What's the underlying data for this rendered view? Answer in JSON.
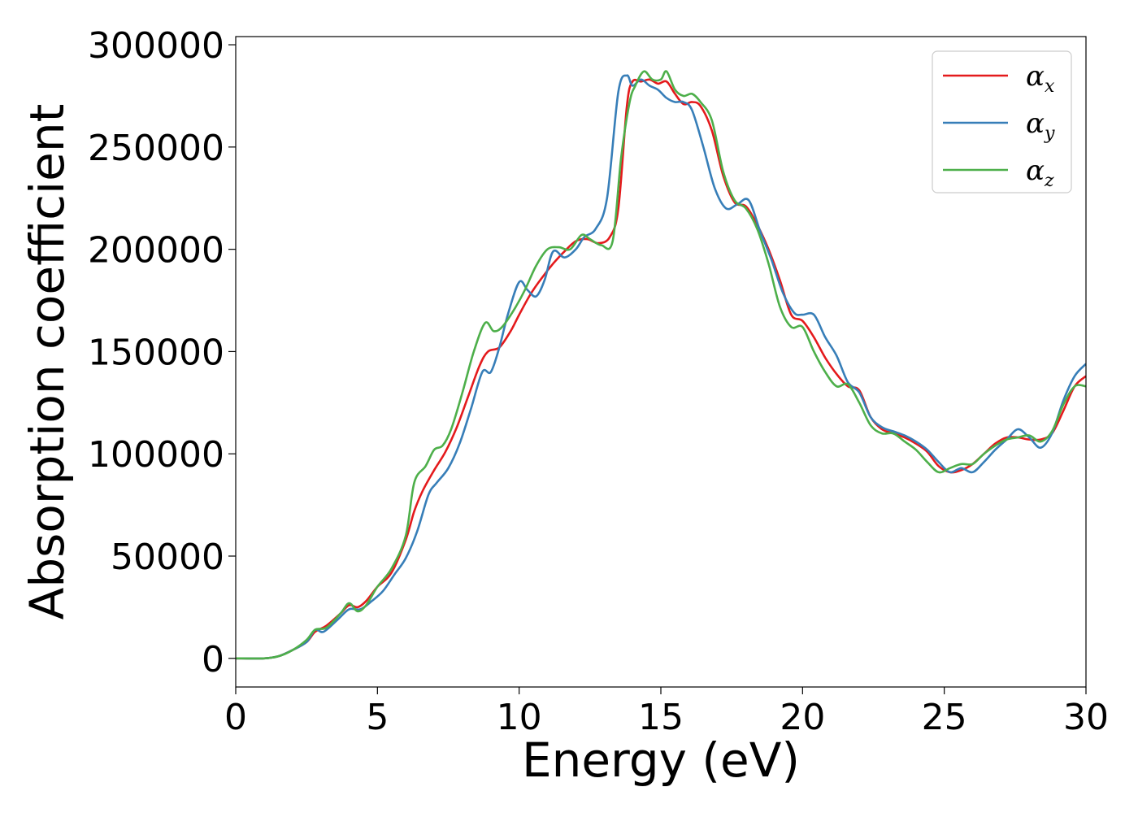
{
  "chart_data": {
    "type": "line",
    "xlabel": "Energy (eV)",
    "ylabel": "Absorption coefficient",
    "xlim": [
      0,
      30
    ],
    "ylim": [
      -14000,
      304000
    ],
    "xticks": [
      0,
      5,
      10,
      15,
      20,
      25,
      30
    ],
    "yticks": [
      0,
      50000,
      100000,
      150000,
      200000,
      250000,
      300000
    ],
    "grid": false,
    "legend_position": "top-right",
    "series": [
      {
        "name": "α_x",
        "legend_base": "α",
        "legend_sub": "x",
        "color": "#e41a1c",
        "x": [
          0,
          1,
          1.5,
          2,
          2.5,
          2.8,
          3.2,
          3.7,
          4,
          4.3,
          4.6,
          5,
          5.5,
          6,
          6.3,
          6.6,
          7,
          7.4,
          7.8,
          8.2,
          8.6,
          8.9,
          9.3,
          9.7,
          10,
          10.4,
          10.8,
          11.2,
          11.6,
          12,
          12.4,
          12.8,
          13.2,
          13.5,
          13.8,
          14,
          14.3,
          14.6,
          14.9,
          15.2,
          15.5,
          15.8,
          16.1,
          16.4,
          16.8,
          17.2,
          17.6,
          18,
          18.4,
          18.8,
          19.2,
          19.6,
          20,
          20.4,
          20.8,
          21.2,
          21.6,
          22,
          22.4,
          22.8,
          23.2,
          23.6,
          24,
          24.4,
          24.8,
          25.2,
          25.6,
          26,
          26.4,
          26.8,
          27.2,
          27.6,
          28,
          28.4,
          28.8,
          29.2,
          29.6,
          30
        ],
        "y": [
          0,
          0,
          1000,
          4000,
          8000,
          13000,
          16000,
          22000,
          26000,
          25000,
          28000,
          35000,
          42000,
          58000,
          72000,
          82000,
          92000,
          101000,
          113000,
          128000,
          143000,
          150000,
          152000,
          160000,
          168000,
          178000,
          186000,
          193000,
          199000,
          204000,
          205000,
          203000,
          206000,
          220000,
          270000,
          282000,
          282000,
          283000,
          281000,
          282000,
          276000,
          271000,
          272000,
          270000,
          258000,
          236000,
          223000,
          221000,
          212000,
          200000,
          185000,
          168000,
          165000,
          157000,
          147000,
          139000,
          133000,
          131000,
          118000,
          112000,
          110000,
          108000,
          105000,
          101000,
          94000,
          91000,
          92000,
          95000,
          100000,
          105000,
          108000,
          108000,
          107000,
          107000,
          110000,
          121000,
          133000,
          138000
        ]
      },
      {
        "name": "α_y",
        "legend_base": "α",
        "legend_sub": "y",
        "color": "#377eb8",
        "x": [
          0,
          1,
          1.5,
          2,
          2.5,
          2.8,
          3.1,
          3.6,
          4,
          4.4,
          4.8,
          5.2,
          5.6,
          6,
          6.4,
          6.8,
          7.1,
          7.5,
          7.9,
          8.3,
          8.7,
          9,
          9.3,
          9.6,
          10,
          10.3,
          10.6,
          10.9,
          11.2,
          11.6,
          12,
          12.3,
          12.7,
          13.1,
          13.5,
          13.8,
          14,
          14.3,
          14.6,
          14.9,
          15.2,
          15.5,
          15.8,
          16.1,
          16.5,
          16.9,
          17.3,
          17.7,
          18.1,
          18.5,
          18.9,
          19.3,
          19.7,
          20,
          20.4,
          20.8,
          21.2,
          21.6,
          22,
          22.4,
          22.8,
          23.2,
          23.6,
          24,
          24.4,
          24.8,
          25.2,
          25.6,
          26,
          26.4,
          26.8,
          27.2,
          27.6,
          28,
          28.4,
          28.8,
          29.2,
          29.6,
          30
        ],
        "y": [
          0,
          0,
          1000,
          4000,
          8000,
          14000,
          13000,
          19000,
          24000,
          24000,
          28000,
          33000,
          41000,
          49000,
          62000,
          80000,
          86000,
          93000,
          105000,
          122000,
          140000,
          140000,
          152000,
          168000,
          184000,
          180000,
          177000,
          185000,
          199000,
          196000,
          200000,
          206000,
          210000,
          225000,
          277000,
          285000,
          280000,
          283000,
          280000,
          278000,
          274000,
          272000,
          272000,
          268000,
          250000,
          230000,
          220000,
          222000,
          224000,
          209000,
          195000,
          179000,
          169000,
          168000,
          168000,
          157000,
          148000,
          135000,
          130000,
          118000,
          113000,
          111000,
          109000,
          106000,
          102000,
          96000,
          91000,
          93000,
          91000,
          96000,
          102000,
          107000,
          112000,
          108000,
          103000,
          110000,
          126000,
          138000,
          144000
        ]
      },
      {
        "name": "α_z",
        "legend_base": "α",
        "legend_sub": "z",
        "color": "#4daf4a",
        "x": [
          0,
          1,
          1.5,
          2,
          2.5,
          2.8,
          3.2,
          3.7,
          4,
          4.3,
          4.6,
          5,
          5.5,
          6,
          6.3,
          6.7,
          7,
          7.3,
          7.6,
          8,
          8.4,
          8.8,
          9.1,
          9.4,
          9.8,
          10.2,
          10.6,
          11,
          11.4,
          11.8,
          12.2,
          12.5,
          12.9,
          13.3,
          13.6,
          13.9,
          14.1,
          14.4,
          14.7,
          15,
          15.2,
          15.5,
          15.8,
          16.1,
          16.4,
          16.8,
          17.2,
          17.6,
          18,
          18.4,
          18.8,
          19.2,
          19.6,
          20,
          20.4,
          20.8,
          21.2,
          21.6,
          22,
          22.4,
          22.8,
          23.2,
          23.6,
          24,
          24.4,
          24.8,
          25.2,
          25.6,
          26,
          26.4,
          26.8,
          27.2,
          27.6,
          28,
          28.4,
          28.8,
          29.2,
          29.6,
          30
        ],
        "y": [
          0,
          0,
          1000,
          4000,
          9000,
          14000,
          15000,
          22000,
          27000,
          23000,
          26000,
          35000,
          44000,
          60000,
          86000,
          94000,
          102000,
          104000,
          112000,
          130000,
          150000,
          164000,
          160000,
          162000,
          170000,
          180000,
          192000,
          200000,
          201000,
          200000,
          207000,
          205000,
          202000,
          204000,
          245000,
          272000,
          280000,
          287000,
          283000,
          283000,
          287000,
          278000,
          275000,
          276000,
          272000,
          263000,
          238000,
          224000,
          220000,
          210000,
          193000,
          172000,
          162000,
          162000,
          150000,
          140000,
          133000,
          134000,
          125000,
          114000,
          110000,
          110000,
          106000,
          102000,
          96000,
          91000,
          93000,
          95000,
          95000,
          100000,
          104000,
          107000,
          108000,
          109000,
          106000,
          111000,
          124000,
          133000,
          133000
        ]
      }
    ]
  }
}
